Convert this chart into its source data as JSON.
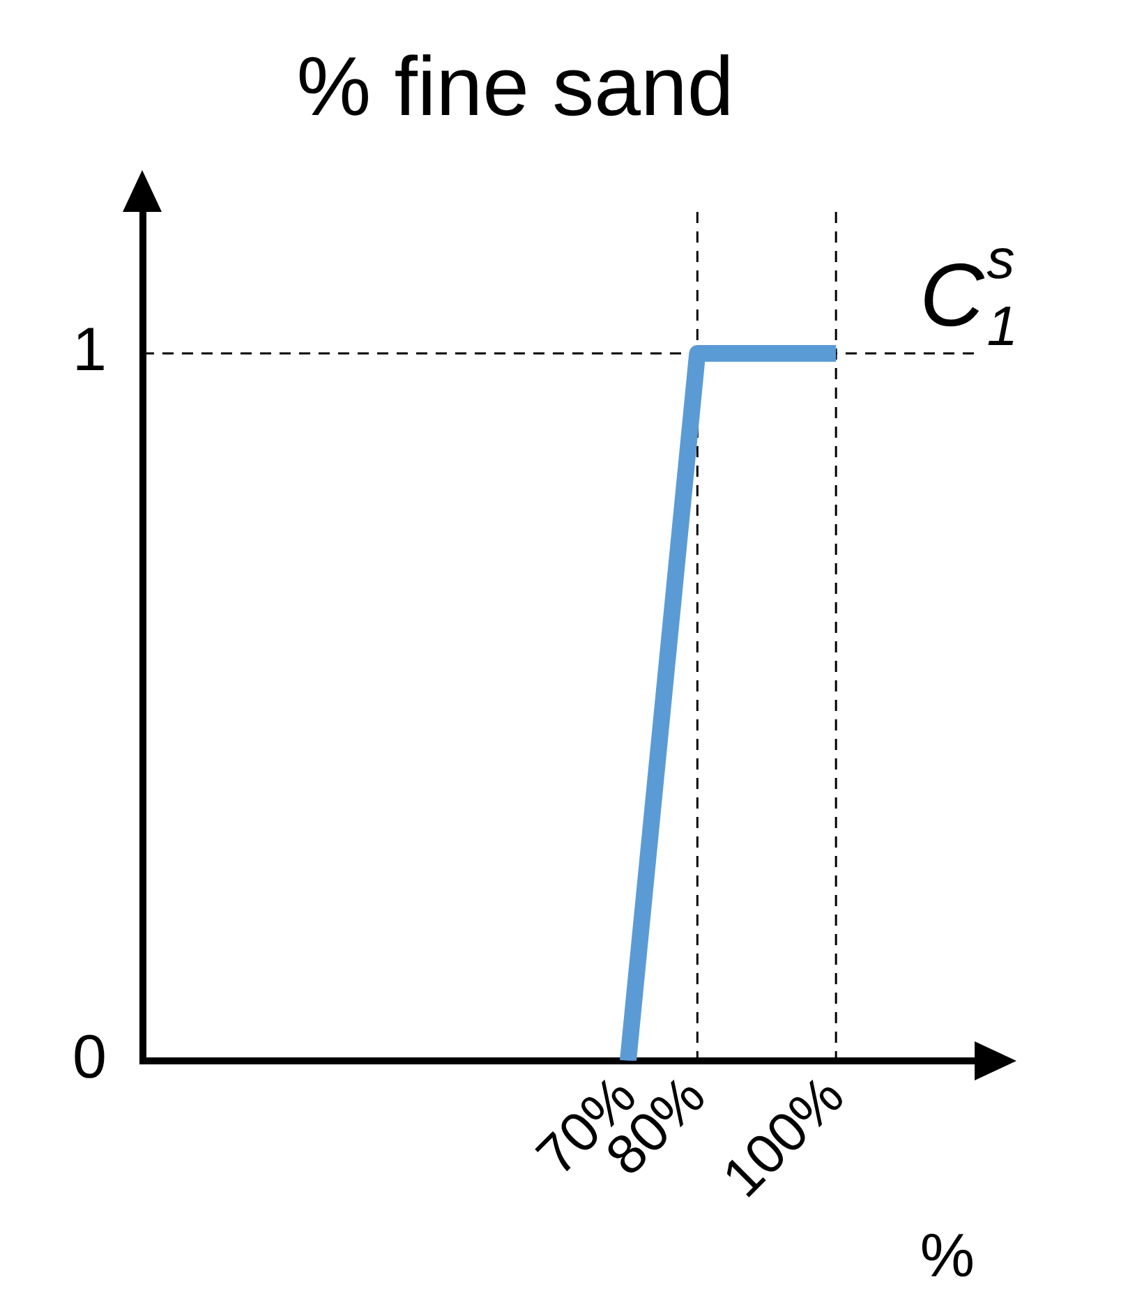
{
  "chart_data": {
    "type": "line",
    "title": "% fine sand",
    "xlabel": "%",
    "x": [
      70,
      80,
      100
    ],
    "series": [
      {
        "name": "C$_{1}$$^{s}$",
        "color": "#5b9bd5",
        "values": [
          0,
          1,
          1
        ]
      }
    ],
    "xlim": [
      0,
      120
    ],
    "xticks": [
      {
        "value": 70,
        "label": "70%"
      },
      {
        "value": 80,
        "label": "80%"
      },
      {
        "value": 100,
        "label": "100%"
      }
    ],
    "ylim": [
      0,
      1.2
    ],
    "yticks": [
      0,
      1
    ],
    "ref_lines": [
      {
        "axis": "x",
        "value": 80,
        "color": "#000000",
        "line_style": "dashed"
      },
      {
        "axis": "x",
        "value": 100,
        "color": "#000000",
        "line_style": "dashed"
      },
      {
        "axis": "y",
        "value": 1,
        "color": "#000000",
        "line_style": "dashed"
      }
    ],
    "grid": false,
    "legend": false,
    "marker": "none",
    "line_style": "solid"
  }
}
